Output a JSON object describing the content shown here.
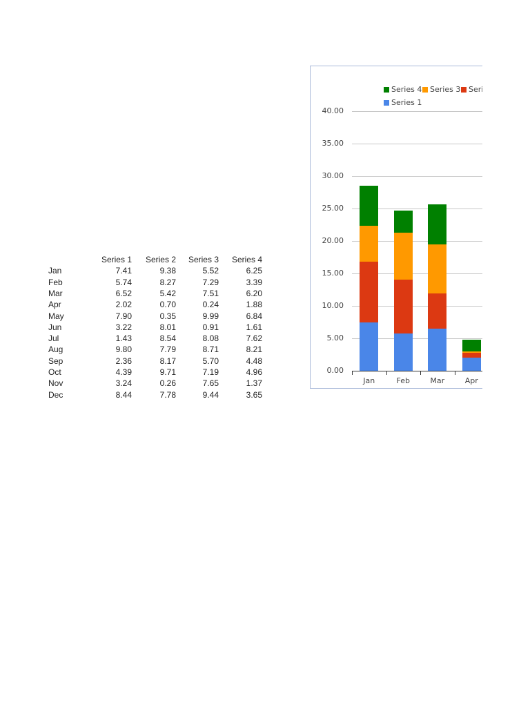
{
  "table": {
    "headers": [
      "",
      "Series 1",
      "Series 2",
      "Series 3",
      "Series 4"
    ],
    "rows": [
      [
        "Jan",
        "7.41",
        "9.38",
        "5.52",
        "6.25"
      ],
      [
        "Feb",
        "5.74",
        "8.27",
        "7.29",
        "3.39"
      ],
      [
        "Mar",
        "6.52",
        "5.42",
        "7.51",
        "6.20"
      ],
      [
        "Apr",
        "2.02",
        "0.70",
        "0.24",
        "1.88"
      ],
      [
        "May",
        "7.90",
        "0.35",
        "9.99",
        "6.84"
      ],
      [
        "Jun",
        "3.22",
        "8.01",
        "0.91",
        "1.61"
      ],
      [
        "Jul",
        "1.43",
        "8.54",
        "8.08",
        "7.62"
      ],
      [
        "Aug",
        "9.80",
        "7.79",
        "8.71",
        "8.21"
      ],
      [
        "Sep",
        "2.36",
        "8.17",
        "5.70",
        "4.48"
      ],
      [
        "Oct",
        "4.39",
        "9.71",
        "7.19",
        "4.96"
      ],
      [
        "Nov",
        "3.24",
        "0.26",
        "7.65",
        "1.37"
      ],
      [
        "Dec",
        "8.44",
        "7.78",
        "9.44",
        "3.65"
      ]
    ]
  },
  "chart_data": {
    "type": "bar",
    "stacked": true,
    "title": "",
    "xlabel": "",
    "ylabel": "",
    "ylim": [
      0,
      40
    ],
    "yticks": [
      "0.00",
      "5.00",
      "10.00",
      "15.00",
      "20.00",
      "25.00",
      "30.00",
      "35.00",
      "40.00"
    ],
    "grid": true,
    "legend_position": "top",
    "legend": [
      {
        "name": "Series 4",
        "color": "#008000"
      },
      {
        "name": "Series 3",
        "color": "#ff9900"
      },
      {
        "name": "Seri",
        "color": "#dc3912"
      },
      {
        "name": "Series 1",
        "color": "#4a86e8"
      }
    ],
    "categories": [
      "Jan",
      "Feb",
      "Mar",
      "Apr"
    ],
    "series": [
      {
        "name": "Series 1",
        "color": "#4a86e8",
        "values": [
          7.41,
          5.74,
          6.52,
          2.02
        ]
      },
      {
        "name": "Series 2",
        "color": "#dc3912",
        "values": [
          9.38,
          8.27,
          5.42,
          0.7
        ]
      },
      {
        "name": "Series 3",
        "color": "#ff9900",
        "values": [
          5.52,
          7.29,
          7.51,
          0.24
        ]
      },
      {
        "name": "Series 4",
        "color": "#008000",
        "values": [
          6.25,
          3.39,
          6.2,
          1.88
        ]
      }
    ],
    "note": "Chart is clipped at right edge; only Jan–Apr visible"
  }
}
